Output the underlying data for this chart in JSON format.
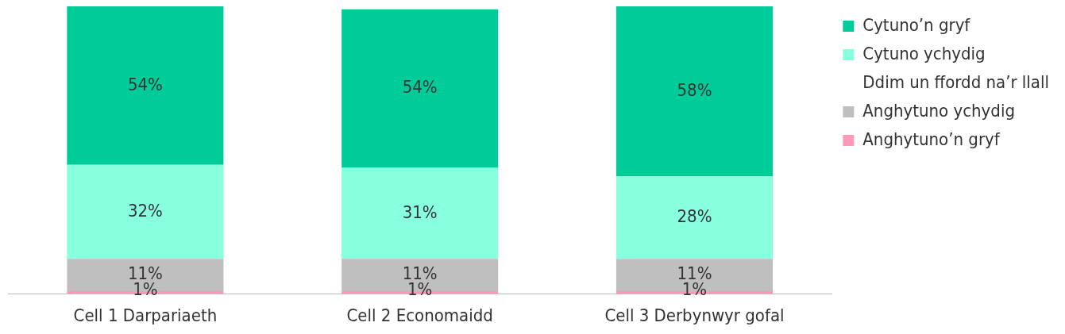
{
  "chart_data": {
    "type": "bar",
    "stacked": true,
    "categories": [
      "Cell 1 Darpariaeth",
      "Cell 2 Economaidd",
      "Cell 3 Derbynwyr gofal"
    ],
    "series": [
      {
        "name": "Anghytuno’n gryf",
        "color": "#ff99bb",
        "values": [
          1,
          1,
          1
        ],
        "value_labels": [
          "1%",
          "1%",
          "1%"
        ]
      },
      {
        "name": "Anghytuno ychydig",
        "color": "#bfbfbf",
        "values": [
          11,
          11,
          11
        ],
        "value_labels": [
          "11%",
          "11%",
          "11%"
        ]
      },
      {
        "name": "Ddim un ffordd na’r llall",
        "values": [
          null,
          null,
          null
        ]
      },
      {
        "name": "Cytuno ychydig",
        "color": "#88ffdd",
        "values": [
          32,
          31,
          28
        ],
        "value_labels": [
          "32%",
          "31%",
          "28%"
        ]
      },
      {
        "name": "Cytuno’n gryf",
        "color": "#00cc99",
        "values": [
          54,
          54,
          58
        ],
        "value_labels": [
          "54%",
          "54%",
          "58%"
        ]
      }
    ],
    "legend": "top right",
    "grid": false
  }
}
